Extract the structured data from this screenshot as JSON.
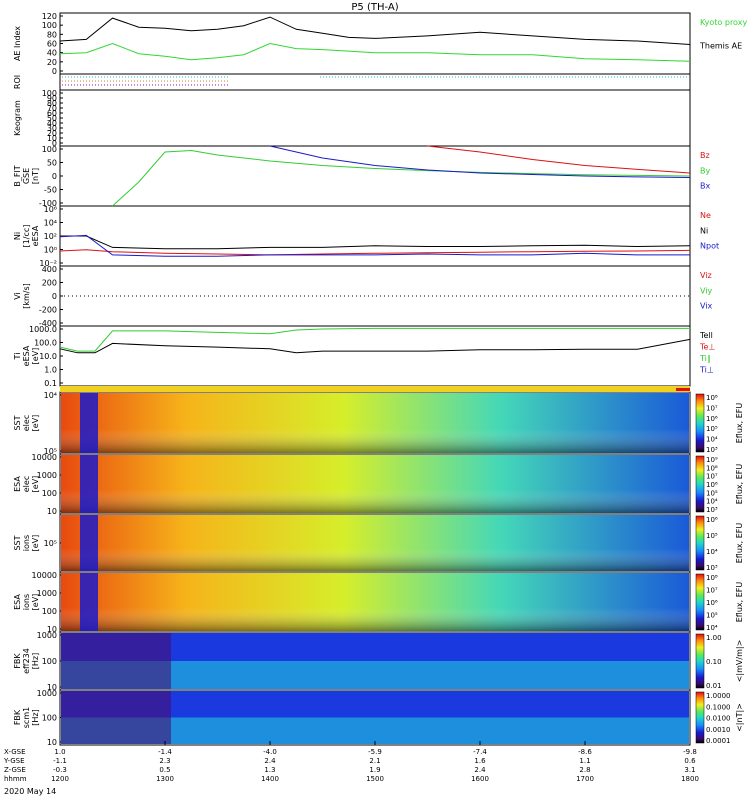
{
  "title": "P5 (TH-A)",
  "date_label": "2020 May 14",
  "colors": {
    "ae_kyoto": "#33d633",
    "black": "#000000",
    "red": "#dd1111",
    "green": "#33cc33",
    "blue": "#1a1acc",
    "roi_cyan": "#1fb5c8",
    "roi_orange": "#e07a20",
    "roi_violet": "#7a1fb0"
  },
  "x_axis": {
    "row_labels": [
      "X-GSE",
      "Y-GSE",
      "Z-GSE",
      "hhmm"
    ],
    "ticks": [
      {
        "hhmm": "1200",
        "x": "1.0",
        "y": "-1.1",
        "z": "-0.3"
      },
      {
        "hhmm": "1300",
        "x": "-1.4",
        "y": "2.3",
        "z": "0.5"
      },
      {
        "hhmm": "1400",
        "x": "-4.0",
        "y": "2.4",
        "z": "1.3"
      },
      {
        "hhmm": "1500",
        "x": "-5.9",
        "y": "2.1",
        "z": "1.9"
      },
      {
        "hhmm": "1600",
        "x": "-7.4",
        "y": "1.6",
        "z": "2.4"
      },
      {
        "hhmm": "1700",
        "x": "-8.6",
        "y": "1.1",
        "z": "2.8"
      },
      {
        "hhmm": "1800",
        "x": "-9.8",
        "y": "0.6",
        "z": "3.1"
      }
    ]
  },
  "panels": [
    {
      "id": "ae",
      "ylabel": [
        "AE Index"
      ],
      "ticks": [
        "120",
        "100",
        "80",
        "60",
        "40",
        "20",
        "0"
      ],
      "legend": [
        "Kyoto proxy AE",
        "Themis AE"
      ]
    },
    {
      "id": "roi",
      "ylabel": [
        "ROI"
      ],
      "ticks": [],
      "legend": []
    },
    {
      "id": "keogram",
      "ylabel": [
        "Keogram"
      ],
      "ticks": [
        "100",
        "90",
        "80",
        "70",
        "60",
        "50",
        "40",
        "30",
        "20",
        "10",
        "0"
      ],
      "legend": []
    },
    {
      "id": "bfit",
      "ylabel": [
        "B_FIT",
        "GSE",
        "[nT]"
      ],
      "ticks": [
        "100",
        "50",
        "0",
        "-50",
        "-100"
      ],
      "legend": [
        "Bz",
        "By",
        "Bx"
      ]
    },
    {
      "id": "ni",
      "ylabel": [
        "Ni",
        "[1/cc]",
        "eESA"
      ],
      "ticks": [
        "10⁶",
        "10⁴",
        "10²",
        "10⁰",
        "10⁻²"
      ],
      "legend": [
        "Ne",
        "Ni",
        "Npot"
      ]
    },
    {
      "id": "vi",
      "ylabel": [
        "Vi",
        "[km/s]"
      ],
      "ticks": [
        "400",
        "200",
        "0",
        "-200",
        "-400"
      ],
      "legend": [
        "Viz",
        "Viy",
        "Vix"
      ]
    },
    {
      "id": "ti",
      "ylabel": [
        "Ti",
        "eESA",
        "[eV]"
      ],
      "ticks": [
        "1000.0",
        "100.0",
        "10.0",
        "1.0",
        "0.1"
      ],
      "legend": [
        "Tell",
        "Te⊥",
        "Ti∥",
        "Ti⊥"
      ]
    },
    {
      "id": "sst_e",
      "ylabel": [
        "SST",
        "elec",
        "[eV]"
      ],
      "ticks": [
        "10⁴",
        "10⁵"
      ],
      "legend": []
    },
    {
      "id": "esa_e",
      "ylabel": [
        "ESA",
        "elec",
        "[eV]"
      ],
      "ticks": [
        "10000",
        "1000",
        "100",
        "10"
      ],
      "legend": []
    },
    {
      "id": "sst_i",
      "ylabel": [
        "SST",
        "ions",
        "[eV]"
      ],
      "ticks": [
        "10⁵"
      ],
      "legend": []
    },
    {
      "id": "esa_i",
      "ylabel": [
        "ESA",
        "ions",
        "[eV]"
      ],
      "ticks": [
        "10000",
        "1000",
        "100",
        "10"
      ],
      "legend": []
    },
    {
      "id": "fbk1",
      "ylabel": [
        "FBK",
        "eff234",
        "[Hz]"
      ],
      "ticks": [
        "1000",
        "100",
        "10"
      ],
      "legend": []
    },
    {
      "id": "fbk2",
      "ylabel": [
        "FBK",
        "scm1",
        "[Hz]"
      ],
      "ticks": [
        "1000",
        "100",
        "10"
      ],
      "legend": []
    }
  ],
  "colorbars": [
    {
      "id": "cb_sst_e",
      "label": "Eflux, EFU",
      "ticks": [
        "10⁸",
        "10⁷",
        "10⁶",
        "10⁵",
        "10⁴",
        "10³"
      ]
    },
    {
      "id": "cb_esa_e",
      "label": "Eflux, EFU",
      "ticks": [
        "10⁹",
        "10⁸",
        "10⁷",
        "10⁶",
        "10⁵",
        "10⁴",
        "10³"
      ]
    },
    {
      "id": "cb_sst_i",
      "label": "Eflux, EFU",
      "ticks": [
        "10⁶",
        "10⁵",
        "10⁴",
        "10³"
      ]
    },
    {
      "id": "cb_esa_i",
      "label": "Eflux, EFU",
      "ticks": [
        "10⁸",
        "10⁷",
        "10⁶",
        "10⁵",
        "10⁴"
      ]
    },
    {
      "id": "cb_fbk1",
      "label": "<|mV/m|>",
      "ticks": [
        "1.00",
        "0.10",
        "0.01"
      ]
    },
    {
      "id": "cb_fbk2",
      "label": "<|nT|>",
      "ticks": [
        "1.0000",
        "0.1000",
        "0.0100",
        "0.0010",
        "0.0001"
      ]
    }
  ],
  "chart_data": [
    {
      "type": "line",
      "panel": "AE Index",
      "ylim": [
        0,
        120
      ],
      "x_hhmm": [
        "1200",
        "1215",
        "1230",
        "1245",
        "1300",
        "1315",
        "1330",
        "1345",
        "1400",
        "1415",
        "1430",
        "1445",
        "1500",
        "1530",
        "1600",
        "1630",
        "1700",
        "1730",
        "1800"
      ],
      "series": [
        {
          "name": "Themis AE",
          "values": [
            65,
            68,
            110,
            92,
            90,
            85,
            88,
            95,
            112,
            88,
            80,
            72,
            70,
            75,
            82,
            75,
            68,
            65,
            58
          ]
        },
        {
          "name": "Kyoto proxy AE",
          "values": [
            40,
            42,
            60,
            40,
            35,
            28,
            32,
            38,
            60,
            50,
            48,
            45,
            42,
            42,
            38,
            38,
            30,
            28,
            25
          ]
        }
      ]
    },
    {
      "type": "line",
      "panel": "B_FIT GSE [nT]",
      "ylim": [
        -100,
        100
      ],
      "x_hhmm": [
        "1230",
        "1245",
        "1300",
        "1315",
        "1330",
        "1400",
        "1430",
        "1500",
        "1530",
        "1600",
        "1630",
        "1700",
        "1730",
        "1800"
      ],
      "series": [
        {
          "name": "Bz",
          "values": [
            null,
            null,
            null,
            null,
            null,
            null,
            null,
            null,
            100,
            80,
            55,
            35,
            22,
            10
          ]
        },
        {
          "name": "By",
          "values": [
            -100,
            -20,
            80,
            85,
            70,
            50,
            35,
            25,
            18,
            12,
            8,
            4,
            2,
            0
          ]
        },
        {
          "name": "Bx",
          "values": [
            null,
            null,
            null,
            null,
            null,
            100,
            60,
            35,
            20,
            10,
            5,
            0,
            -3,
            -5
          ]
        }
      ]
    },
    {
      "type": "line",
      "panel": "Ni eESA [1/cc]",
      "log_y": true,
      "ylim": [
        0.01,
        1000000
      ],
      "x_hhmm": [
        "1200",
        "1215",
        "1230",
        "1300",
        "1330",
        "1400",
        "1430",
        "1500",
        "1530",
        "1600",
        "1630",
        "1700",
        "1730",
        "1800"
      ],
      "series": [
        {
          "name": "Ne",
          "values": [
            1,
            1.5,
            0.8,
            0.5,
            0.4,
            0.3,
            0.4,
            0.5,
            0.6,
            0.7,
            0.8,
            0.9,
            1,
            1.2
          ]
        },
        {
          "name": "Ni",
          "values": [
            100,
            100,
            3,
            2,
            2,
            3,
            3,
            5,
            4,
            4,
            5,
            6,
            4,
            5
          ]
        },
        {
          "name": "Npot",
          "values": [
            80,
            120,
            0.3,
            0.2,
            0.2,
            0.3,
            0.3,
            0.3,
            0.4,
            0.3,
            0.3,
            0.5,
            0.3,
            0.3
          ]
        }
      ]
    },
    {
      "type": "line",
      "panel": "Ti eESA [eV]",
      "log_y": true,
      "ylim": [
        0.1,
        3000
      ],
      "x_hhmm": [
        "1200",
        "1210",
        "1220",
        "1230",
        "1300",
        "1330",
        "1400",
        "1415",
        "1430",
        "1500",
        "1530",
        "1600",
        "1630",
        "1700",
        "1730",
        "1800"
      ],
      "series": [
        {
          "name": "Tell",
          "values": [
            60,
            30,
            30,
            150,
            100,
            80,
            60,
            30,
            40,
            40,
            40,
            50,
            50,
            55,
            55,
            300
          ]
        },
        {
          "name": "Ti∥",
          "values": [
            80,
            40,
            40,
            1300,
            1300,
            1000,
            800,
            1500,
            1800,
            2000,
            2000,
            2000,
            2000,
            2000,
            2000,
            2000
          ]
        }
      ]
    }
  ]
}
